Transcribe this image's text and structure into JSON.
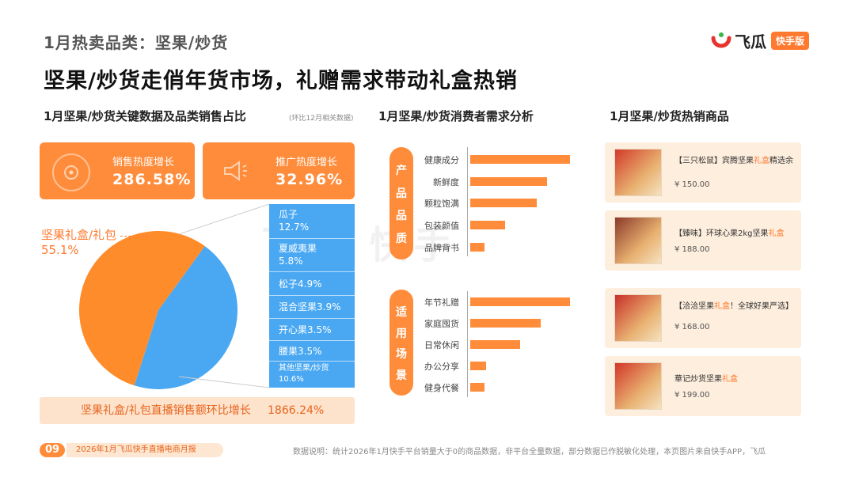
{
  "header": {
    "kicker": "1月热卖品类：坚果/炒货",
    "headline": "坚果/炒货走俏年货市场，礼赠需求带动礼盒热销"
  },
  "logo": {
    "name": "飞瓜",
    "badge": "快手版",
    "accent": "#e8342e"
  },
  "watermark": "飞瓜 快手",
  "sections": {
    "key_data": "1月坚果/炒货关键数据及品类销售占比",
    "key_data_note": "(环比12月相关数据)",
    "demand": "1月坚果/炒货消费者需求分析",
    "hot_products": "1月坚果/炒货热销商品"
  },
  "metrics": [
    {
      "label": "销售热度增长",
      "value": "286.58%",
      "icon": "chart-icon"
    },
    {
      "label": "推广热度增长",
      "value": "32.96%",
      "icon": "megaphone-icon"
    }
  ],
  "pie": {
    "main_label": "坚果礼盒/礼包",
    "main_value": "55.1%",
    "legend": [
      {
        "name": "瓜子",
        "value": "12.7%"
      },
      {
        "name": "夏威夷果",
        "value": "5.8%"
      },
      {
        "name": "松子4.9%"
      },
      {
        "name": "混合坚果3.9%"
      },
      {
        "name": "开心果3.5%"
      },
      {
        "name": "腰果3.5%"
      },
      {
        "name": "其他坚果/炒货",
        "value": "10.6%"
      }
    ],
    "growth_label": "坚果礼盒/礼包直播销售额环比增长",
    "growth_value": "1866.24%",
    "colors": {
      "main": "#ff8c2a",
      "others": "#4aa8f2"
    }
  },
  "chart_data": {
    "type": "pie",
    "categories": [
      "坚果礼盒/礼包",
      "瓜子",
      "夏威夷果",
      "松子",
      "混合坚果",
      "开心果",
      "腰果",
      "其他坚果/炒货"
    ],
    "values": [
      55.1,
      12.7,
      5.8,
      4.9,
      3.9,
      3.5,
      3.5,
      10.6
    ]
  },
  "demand": {
    "groups": [
      {
        "name": "产品品质",
        "items": [
          {
            "label": "健康成分",
            "value": 100
          },
          {
            "label": "新鲜度",
            "value": 77
          },
          {
            "label": "颗粒饱满",
            "value": 67
          },
          {
            "label": "包装颜值",
            "value": 35
          },
          {
            "label": "品牌背书",
            "value": 14
          }
        ]
      },
      {
        "name": "适用场景",
        "items": [
          {
            "label": "年节礼赠",
            "value": 100
          },
          {
            "label": "家庭囤货",
            "value": 71
          },
          {
            "label": "日常休闲",
            "value": 50
          },
          {
            "label": "办公分享",
            "value": 16
          },
          {
            "label": "健身代餐",
            "value": 14
          }
        ]
      }
    ],
    "bar_color": "#ff8c3a"
  },
  "products": [
    {
      "pre": "【三只松鼠】宾腾坚果",
      "hl": "礼盒",
      "post": "精选余",
      "price": "¥ 150.00",
      "img_color": "#d23a2a"
    },
    {
      "pre": "【臻味】环球心果2kg坚果",
      "hl": "礼盒",
      "post": "",
      "price": "¥ 188.00",
      "img_color": "#8a3a2a"
    },
    {
      "pre": "【洽洽坚果",
      "hl": "礼盒",
      "post": "！全球好果严选】",
      "price": "¥ 168.00",
      "img_color": "#c8302a"
    },
    {
      "pre": "華记炒货坚果",
      "hl": "礼盒",
      "post": "",
      "price": "¥ 199.00",
      "img_color": "#d2362a"
    }
  ],
  "footer": {
    "page": "09",
    "report": "2026年1月飞瓜快手直播电商月报",
    "note": "数据说明：统计2026年1月快手平台销量大于0的商品数据，非平台全量数据，部分数据已作脱敏化处理，本页图片来自快手APP，飞瓜"
  }
}
